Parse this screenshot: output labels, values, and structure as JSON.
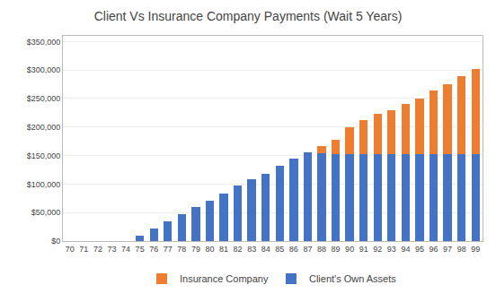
{
  "chart_data": {
    "type": "bar",
    "title": "Client Vs Insurance Company Payments (Wait 5 Years)",
    "categories": [
      "70",
      "71",
      "72",
      "73",
      "74",
      "75",
      "76",
      "77",
      "78",
      "79",
      "80",
      "81",
      "82",
      "83",
      "84",
      "85",
      "86",
      "87",
      "88",
      "89",
      "90",
      "91",
      "92",
      "93",
      "94",
      "95",
      "96",
      "97",
      "98",
      "99"
    ],
    "series": [
      {
        "name": "Client's Own Assets",
        "color": "#4472C4",
        "values": [
          0,
          0,
          0,
          0,
          0,
          10000,
          22000,
          35000,
          47000,
          59000,
          70000,
          83000,
          97000,
          108000,
          118000,
          132000,
          144000,
          155000,
          154000,
          153000,
          153000,
          152000,
          152000,
          152000,
          152000,
          152000,
          152000,
          152000,
          152000,
          152000
        ]
      },
      {
        "name": "Insurance Company",
        "color": "#ED7D31",
        "values": [
          0,
          0,
          0,
          0,
          0,
          0,
          0,
          0,
          0,
          0,
          0,
          0,
          0,
          0,
          0,
          0,
          0,
          0,
          13000,
          24000,
          47000,
          60000,
          72000,
          78000,
          88000,
          98000,
          112000,
          123000,
          138000,
          150000
        ]
      }
    ],
    "stacked": true,
    "ylim": [
      0,
      360000
    ],
    "yticks": [
      {
        "value": 0,
        "label": "$0"
      },
      {
        "value": 50000,
        "label": "$50,000"
      },
      {
        "value": 100000,
        "label": "$100,000"
      },
      {
        "value": 150000,
        "label": "$150,000"
      },
      {
        "value": 200000,
        "label": "$200,000"
      },
      {
        "value": 250000,
        "label": "$250,000"
      },
      {
        "value": 300000,
        "label": "$300,000"
      },
      {
        "value": 350000,
        "label": "$350,000"
      }
    ],
    "grid": true,
    "legend": "bottom"
  }
}
